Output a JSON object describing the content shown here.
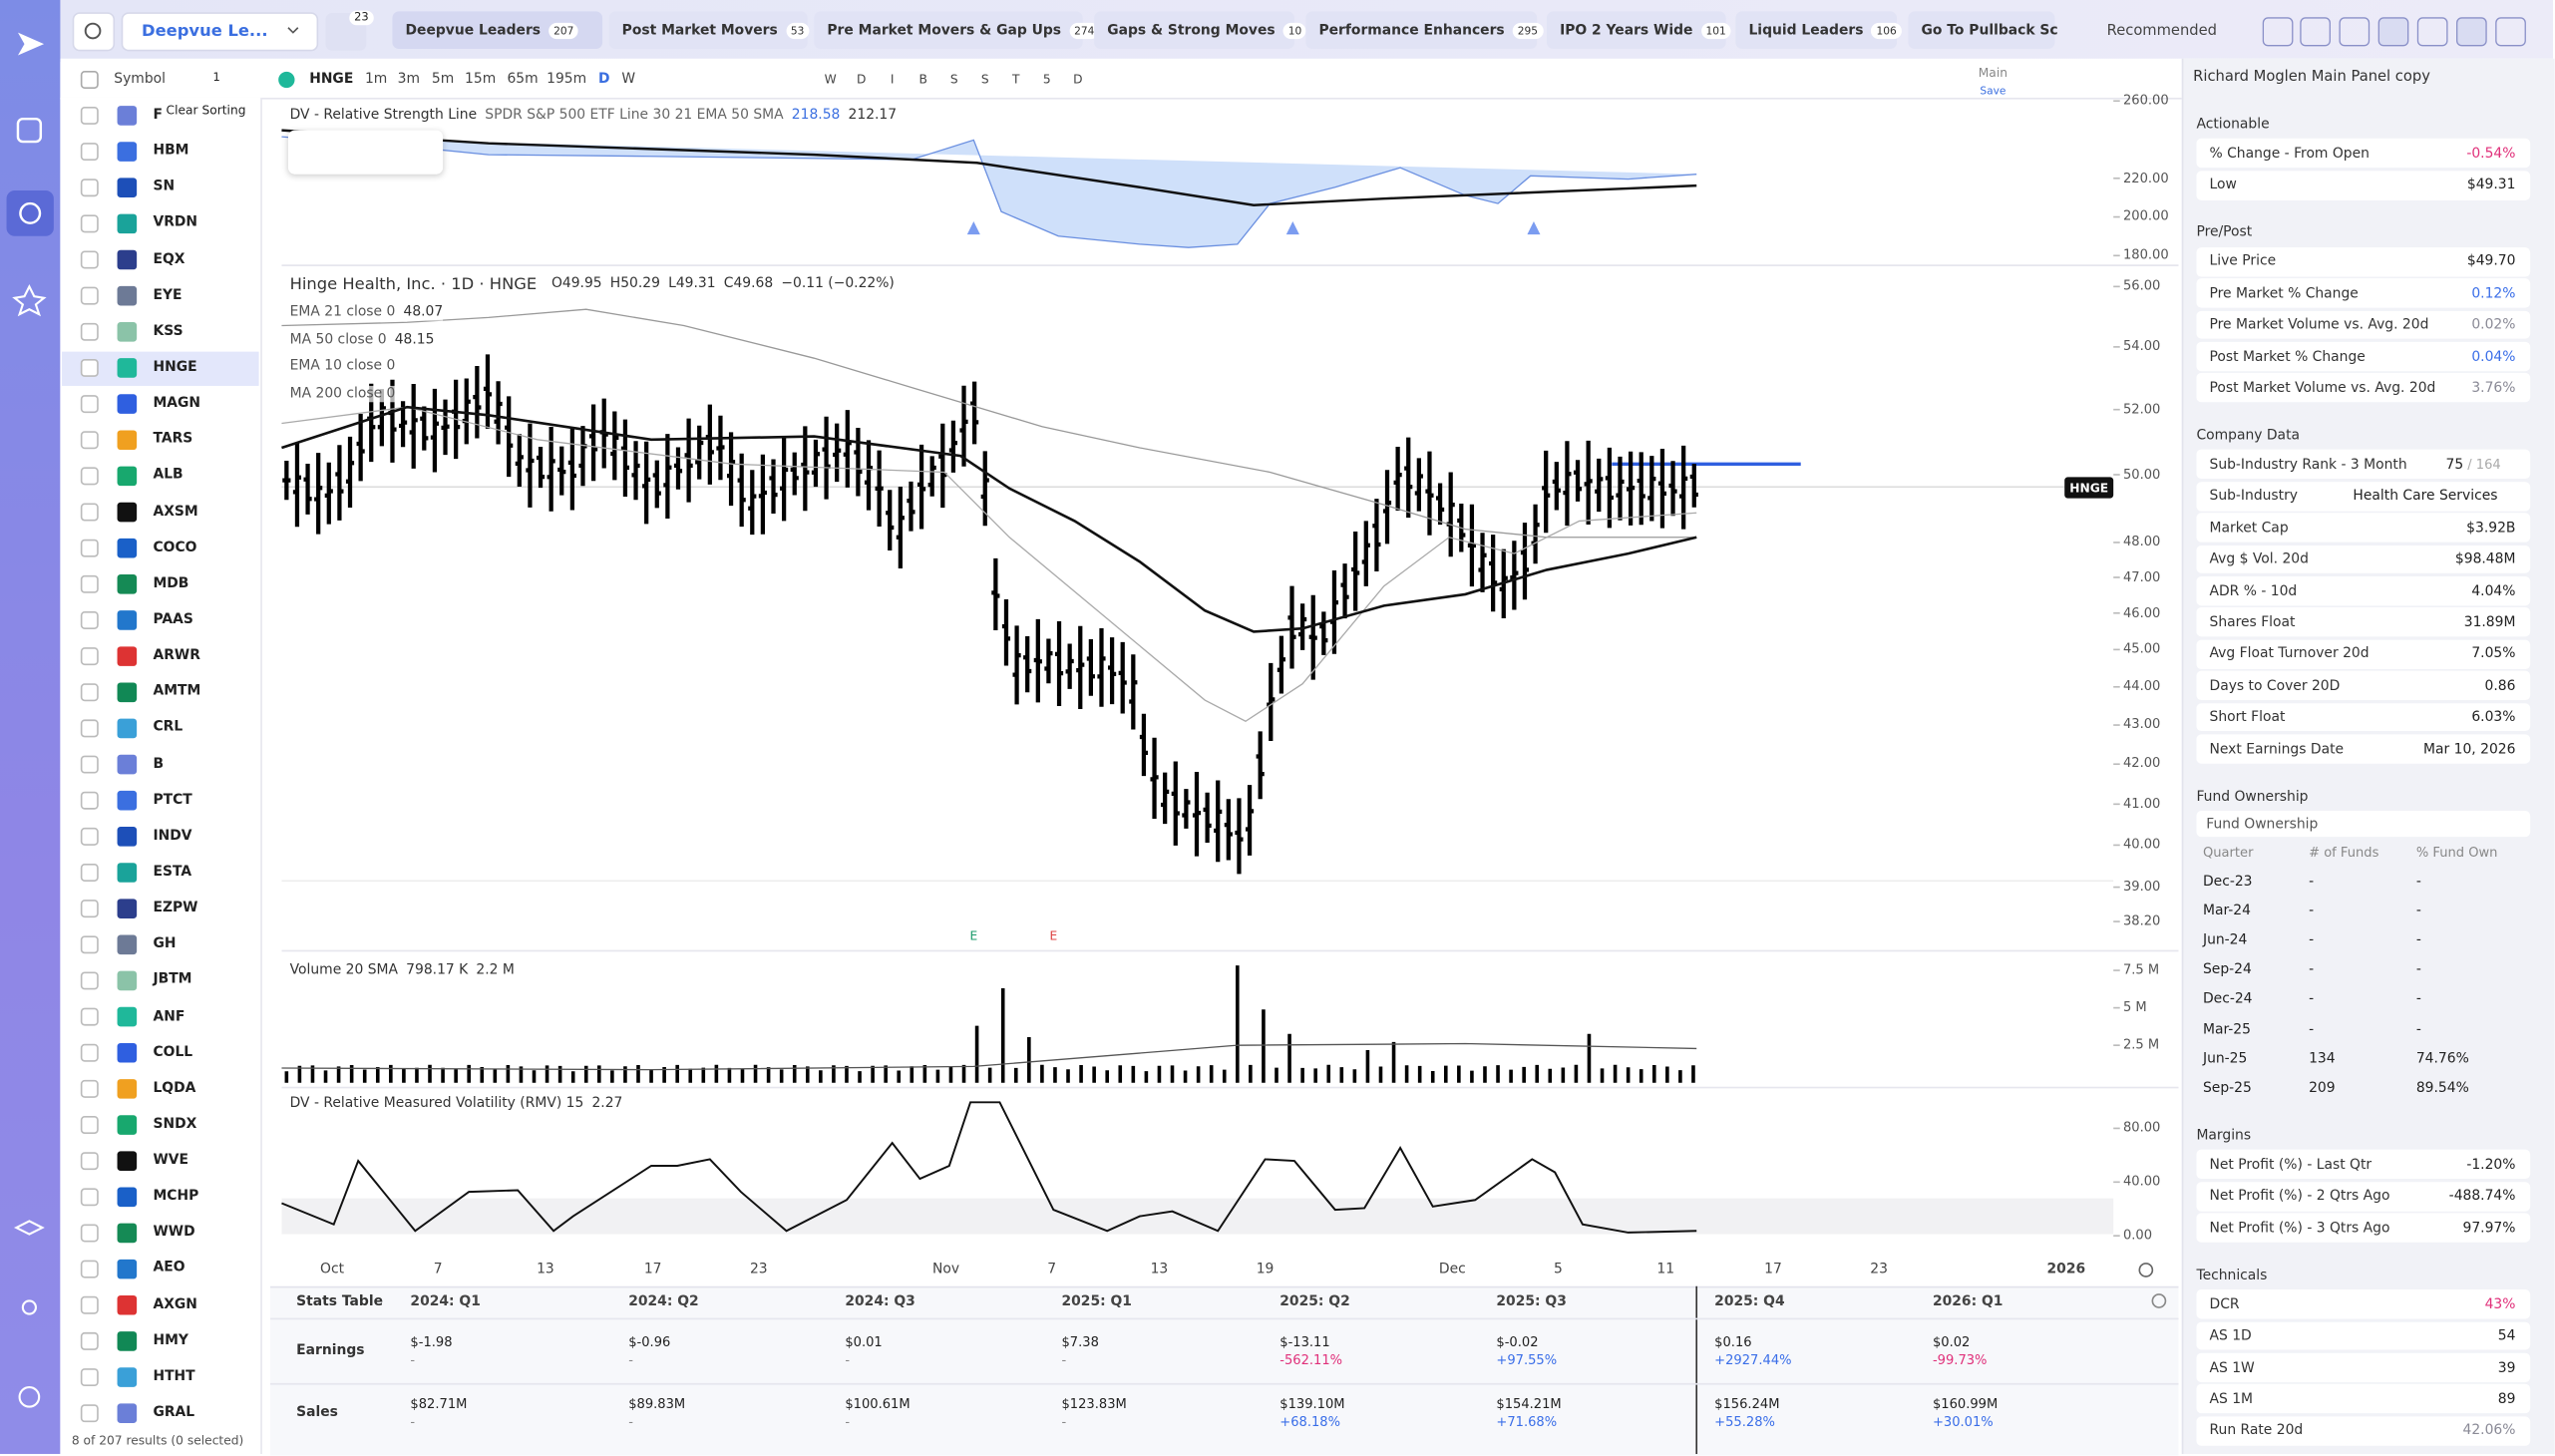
{
  "top_bar": {
    "watchlist": "Deepvue Le...",
    "alerts_count": 23,
    "tabs": [
      {
        "name": "Deepvue Leaders",
        "count": 207
      },
      {
        "name": "Post Market Movers",
        "count": 53
      },
      {
        "name": "Pre Market Movers & Gap Ups",
        "count": 274
      },
      {
        "name": "Gaps & Strong Moves",
        "count": 10
      },
      {
        "name": "Performance Enhancers",
        "count": 295
      },
      {
        "name": "IPO 2 Years Wide",
        "count": 101
      },
      {
        "name": "Liquid Leaders",
        "count": 106
      },
      {
        "name": "Go To Pullback Sc"
      }
    ],
    "sort": "Recommended"
  },
  "toolbar": {
    "column": "Symbol",
    "sort_count": 1,
    "tooltip": "Clear Sorting",
    "symbol": "HNGE",
    "timeframes": [
      "1m",
      "3m",
      "5m",
      "15m",
      "65m",
      "195m",
      "D",
      "W"
    ],
    "letters": [
      "W",
      "D",
      "I",
      "B",
      "S",
      "S",
      "T",
      "5",
      "D"
    ],
    "layout": "Main",
    "save": "Save"
  },
  "watchlist": {
    "symbols": [
      "F",
      "HBM",
      "SN",
      "VRDN",
      "EQX",
      "EYE",
      "KSS",
      "HNGE",
      "MAGN",
      "TARS",
      "ALB",
      "AXSM",
      "COCO",
      "MDB",
      "PAAS",
      "ARWR",
      "AMTM",
      "CRL",
      "B",
      "PTCT",
      "INDV",
      "ESTA",
      "EZPW",
      "GH",
      "JBTM",
      "ANF",
      "COLL",
      "LQDA",
      "SNDX",
      "WVE",
      "MCHP",
      "WWD",
      "AEO",
      "AXGN",
      "HMY",
      "HTHT",
      "GRAL"
    ],
    "footer": "8 of 207 results (0 selected)"
  },
  "chart": {
    "rs": {
      "title": "DV - Relative Strength Line",
      "params": "SPDR S&P 500 ETF Line 30 21 EMA 50 SMA",
      "value1": 218.58,
      "value2": 212.17,
      "ylim": [
        180,
        260
      ],
      "yticks": [
        {
          "value": 260,
          "label": "260.00"
        },
        {
          "value": 220,
          "label": "220.00"
        },
        {
          "value": 200,
          "label": "200.00"
        },
        {
          "value": 180,
          "label": "180.00"
        }
      ]
    },
    "price": {
      "title": "Hinge Health, Inc. · 1D · HNGE",
      "open": "O49.95",
      "high": "H50.29",
      "low": "L49.31",
      "close": "C49.68",
      "change": "−0.11 (−0.22%)",
      "indicators": [
        {
          "name": "EMA 21 close 0",
          "value": 48.07
        },
        {
          "name": "MA 50 close 0",
          "value": 48.15
        },
        {
          "name": "EMA 10 close 0"
        },
        {
          "name": "MA 200 close 0"
        }
      ],
      "tag": "HNGE",
      "log_scale": true,
      "ylim": [
        38.2,
        56
      ],
      "yticks": [
        {
          "value": 56,
          "label": "56.00"
        },
        {
          "value": 54,
          "label": "54.00"
        },
        {
          "value": 52,
          "label": "52.00"
        },
        {
          "value": 50,
          "label": "50.00"
        },
        {
          "value": 48,
          "label": "48.00"
        },
        {
          "value": 47,
          "label": "47.00"
        },
        {
          "value": 46,
          "label": "46.00"
        },
        {
          "value": 45,
          "label": "45.00"
        },
        {
          "value": 44,
          "label": "44.00"
        },
        {
          "value": 43,
          "label": "43.00"
        },
        {
          "value": 42,
          "label": "42.00"
        },
        {
          "value": 41,
          "label": "41.00"
        },
        {
          "value": 40,
          "label": "40.00"
        },
        {
          "value": 39,
          "label": "39.00"
        },
        {
          "value": 38.2,
          "label": "38.20"
        }
      ],
      "earnings_markers": [
        "E",
        "E"
      ]
    },
    "volume": {
      "title": "Volume 20 SMA",
      "sma": "798.17 K",
      "value": "2.2 M",
      "ylim": [
        0,
        7500000
      ],
      "yticks": [
        {
          "value": 7500000,
          "label": "7.5 M"
        },
        {
          "value": 5000000,
          "label": "5 M"
        },
        {
          "value": 2500000,
          "label": "2.5 M"
        }
      ]
    },
    "rmv": {
      "title": "DV - Relative Measured Volatility (RMV) 15",
      "value": 2.27,
      "ylim": [
        0,
        80
      ],
      "yticks": [
        {
          "value": 80,
          "label": "80.00"
        },
        {
          "value": 40,
          "label": "40.00"
        },
        {
          "value": 0,
          "label": "0.00"
        }
      ]
    },
    "x_labels": [
      "Oct",
      "7",
      "13",
      "17",
      "23",
      "Nov",
      "7",
      "13",
      "19",
      "Dec",
      "5",
      "11",
      "17",
      "23",
      "2026"
    ]
  },
  "stats_table": {
    "title": "Stats Table",
    "columns": [
      "2024: Q1",
      "2024: Q2",
      "2024: Q3",
      "2025: Q1",
      "2025: Q2",
      "2025: Q3",
      "2025: Q4",
      "2026: Q1"
    ],
    "rows": [
      {
        "label": "Earnings",
        "cells": [
          {
            "value": "$-1.98",
            "change": "-"
          },
          {
            "value": "$-0.96",
            "change": "-"
          },
          {
            "value": "$0.01",
            "change": "-"
          },
          {
            "value": "$7.38",
            "change": "-"
          },
          {
            "value": "$-13.11",
            "change": "-562.11%"
          },
          {
            "value": "$-0.02",
            "change": "+97.55%"
          },
          {
            "value": "$0.16",
            "change": "+2927.44%"
          },
          {
            "value": "$0.02",
            "change": "-99.73%"
          }
        ]
      },
      {
        "label": "Sales",
        "cells": [
          {
            "value": "$82.71M",
            "change": "-"
          },
          {
            "value": "$89.83M",
            "change": "-"
          },
          {
            "value": "$100.61M",
            "change": "-"
          },
          {
            "value": "$123.83M",
            "change": "-"
          },
          {
            "value": "$139.10M",
            "change": "+68.18%"
          },
          {
            "value": "$154.21M",
            "change": "+71.68%"
          },
          {
            "value": "$156.24M",
            "change": "+55.28%"
          },
          {
            "value": "$160.99M",
            "change": "+30.01%"
          }
        ]
      }
    ]
  },
  "panel": {
    "title": "Richard Moglen Main Panel copy",
    "sections": [
      {
        "title": "Actionable",
        "rows": [
          {
            "label": "% Change - From Open",
            "value": "-0.54%",
            "color": "#e0307a"
          },
          {
            "label": "Low",
            "value": "$49.31"
          }
        ]
      },
      {
        "title": "Pre/Post",
        "rows": [
          {
            "label": "Live Price",
            "value": "$49.70"
          },
          {
            "label": "Pre Market % Change",
            "value": "0.12%",
            "color": "#3a6ee8"
          },
          {
            "label": "Pre Market Volume vs. Avg. 20d",
            "value": "0.02%",
            "color": "#8a8a96"
          },
          {
            "label": "Post Market % Change",
            "value": "0.04%",
            "color": "#3a6ee8"
          },
          {
            "label": "Post Market Volume vs. Avg. 20d",
            "value": "3.76%",
            "color": "#8a8a96"
          }
        ]
      },
      {
        "title": "Company Data",
        "rows": [
          {
            "label": "Sub-Industry Rank - 3 Month",
            "value": "75",
            "suffix": "/ 164"
          },
          {
            "label": "Sub-Industry",
            "value": "Health Care Services"
          },
          {
            "label": "Market Cap",
            "value": "$3.92B"
          },
          {
            "label": "Avg $ Vol. 20d",
            "value": "$98.48M"
          },
          {
            "label": "ADR % - 10d",
            "value": "4.04%"
          },
          {
            "label": "Shares Float",
            "value": "31.89M"
          },
          {
            "label": "Avg Float Turnover 20d",
            "value": "7.05%"
          },
          {
            "label": "Days to Cover 20D",
            "value": "0.86"
          },
          {
            "label": "Short Float",
            "value": "6.03%"
          },
          {
            "label": "Next Earnings Date",
            "value": "Mar 10, 2026"
          }
        ]
      },
      {
        "title": "Fund Ownership",
        "subtitle": "Fund Ownership",
        "columns": [
          "Quarter",
          "# of Funds",
          "% Fund Own"
        ],
        "table": [
          [
            "Dec-23",
            "-",
            "-"
          ],
          [
            "Mar-24",
            "-",
            "-"
          ],
          [
            "Jun-24",
            "-",
            "-"
          ],
          [
            "Sep-24",
            "-",
            "-"
          ],
          [
            "Dec-24",
            "-",
            "-"
          ],
          [
            "Mar-25",
            "-",
            "-"
          ],
          [
            "Jun-25",
            "134",
            "74.76%"
          ],
          [
            "Sep-25",
            "209",
            "89.54%"
          ]
        ]
      },
      {
        "title": "Margins",
        "rows": [
          {
            "label": "Net Profit (%) - Last Qtr",
            "value": "-1.20%"
          },
          {
            "label": "Net Profit (%) - 2 Qtrs Ago",
            "value": "-488.74%"
          },
          {
            "label": "Net Profit (%) - 3 Qtrs Ago",
            "value": "97.97%"
          }
        ]
      },
      {
        "title": "Technicals",
        "rows": [
          {
            "label": "DCR",
            "value": "43%",
            "color": "#e0307a"
          },
          {
            "label": "AS 1D",
            "value": "54"
          },
          {
            "label": "AS 1W",
            "value": "39"
          },
          {
            "label": "AS 1M",
            "value": "89"
          },
          {
            "label": "Run Rate 20d",
            "value": "42.06%",
            "color": "#8a8a96"
          }
        ]
      }
    ]
  }
}
